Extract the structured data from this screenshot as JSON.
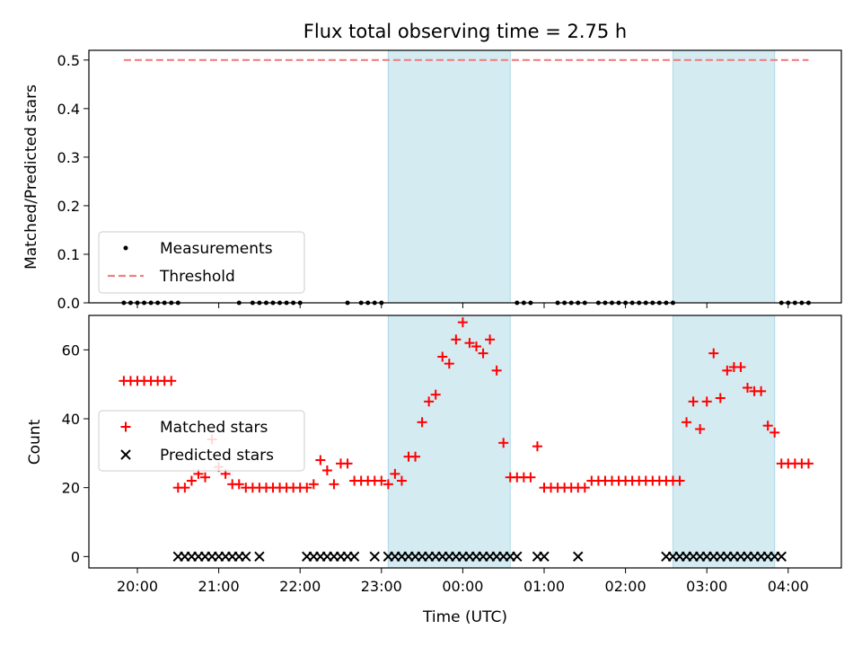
{
  "title": "Flux total observing time = 2.75 h",
  "colors": {
    "matched": "#ff0000",
    "predicted": "#000000",
    "threshold": "#f08080",
    "band": "#add8e6"
  },
  "chart_data": [
    {
      "type": "scatter",
      "ylabel": "Matched/Predicted stars",
      "ylim": [
        0,
        0.52
      ],
      "yticks": [
        0.0,
        0.1,
        0.2,
        0.3,
        0.4,
        0.5
      ],
      "ytick_labels": [
        "0.0",
        "0.1",
        "0.2",
        "0.3",
        "0.4",
        "0.5"
      ],
      "legend": {
        "placement": "lower-left",
        "entries": [
          "Measurements",
          "Threshold"
        ]
      },
      "threshold": {
        "value": 0.5,
        "x_start": "19:50",
        "x_end": "04:15"
      },
      "measurements_x": [
        "19:50",
        "19:55",
        "20:00",
        "20:05",
        "20:10",
        "20:15",
        "20:20",
        "20:25",
        "20:30",
        "21:15",
        "21:25",
        "21:30",
        "21:35",
        "21:40",
        "21:45",
        "21:50",
        "21:55",
        "22:00",
        "22:35",
        "22:45",
        "22:50",
        "22:55",
        "23:00",
        "00:40",
        "00:45",
        "00:50",
        "01:10",
        "01:15",
        "01:20",
        "01:25",
        "01:30",
        "01:40",
        "01:45",
        "01:50",
        "01:55",
        "02:00",
        "02:05",
        "02:10",
        "02:15",
        "02:20",
        "02:25",
        "02:30",
        "02:35",
        "03:55",
        "04:00",
        "04:05",
        "04:10",
        "04:15"
      ],
      "measurements_y": 0
    },
    {
      "type": "scatter",
      "xlabel": "Time (UTC)",
      "ylabel": "Count",
      "ylim": [
        -3.3,
        70
      ],
      "yticks": [
        0,
        20,
        40,
        60
      ],
      "ytick_labels": [
        "0",
        "20",
        "40",
        "60"
      ],
      "xticks": [
        "20:00",
        "21:00",
        "22:00",
        "23:00",
        "00:00",
        "01:00",
        "02:00",
        "03:00",
        "04:00"
      ],
      "legend": {
        "placement": "center-left",
        "entries": [
          "Matched stars",
          "Predicted stars"
        ]
      },
      "series": [
        {
          "name": "Matched stars",
          "marker": "plus",
          "x": [
            "19:50",
            "19:55",
            "20:00",
            "20:05",
            "20:10",
            "20:15",
            "20:20",
            "20:25",
            "20:30",
            "20:35",
            "20:40",
            "20:45",
            "20:50",
            "20:55",
            "21:00",
            "21:05",
            "21:10",
            "21:15",
            "21:20",
            "21:25",
            "21:30",
            "21:35",
            "21:40",
            "21:45",
            "21:50",
            "21:55",
            "22:00",
            "22:05",
            "22:10",
            "22:15",
            "22:20",
            "22:25",
            "22:30",
            "22:35",
            "22:40",
            "22:45",
            "22:50",
            "22:55",
            "23:00",
            "23:05",
            "23:10",
            "23:15",
            "23:20",
            "23:25",
            "23:30",
            "23:35",
            "23:40",
            "23:45",
            "23:50",
            "23:55",
            "00:00",
            "00:05",
            "00:10",
            "00:15",
            "00:20",
            "00:25",
            "00:30",
            "00:35",
            "00:40",
            "00:45",
            "00:50",
            "00:55",
            "01:00",
            "01:05",
            "01:10",
            "01:15",
            "01:20",
            "01:25",
            "01:30",
            "01:35",
            "01:40",
            "01:45",
            "01:50",
            "01:55",
            "02:00",
            "02:05",
            "02:10",
            "02:15",
            "02:20",
            "02:25",
            "02:30",
            "02:35",
            "02:40",
            "02:45",
            "02:50",
            "02:55",
            "03:00",
            "03:05",
            "03:10",
            "03:15",
            "03:20",
            "03:25",
            "03:30",
            "03:35",
            "03:40",
            "03:45",
            "03:50",
            "03:55",
            "04:00",
            "04:05",
            "04:10",
            "04:15"
          ],
          "values": [
            51,
            51,
            51,
            51,
            51,
            51,
            51,
            51,
            20,
            20,
            22,
            24,
            23,
            34,
            26,
            24,
            21,
            21,
            20,
            20,
            20,
            20,
            20,
            20,
            20,
            20,
            20,
            20,
            21,
            28,
            25,
            21,
            27,
            27,
            22,
            22,
            22,
            22,
            22,
            21,
            24,
            22,
            29,
            29,
            39,
            45,
            47,
            58,
            56,
            63,
            68,
            62,
            61,
            59,
            63,
            54,
            33,
            23,
            23,
            23,
            23,
            32,
            20,
            20,
            20,
            20,
            20,
            20,
            20,
            22,
            22,
            22,
            22,
            22,
            22,
            22,
            22,
            22,
            22,
            22,
            22,
            22,
            22,
            39,
            45,
            37,
            45,
            59,
            46,
            54,
            55,
            55,
            49,
            48,
            48,
            38,
            36,
            27,
            27,
            27,
            27,
            27
          ]
        },
        {
          "name": "Predicted stars",
          "marker": "x",
          "x": [
            "20:30",
            "20:35",
            "20:40",
            "20:45",
            "20:50",
            "20:55",
            "21:00",
            "21:05",
            "21:10",
            "21:15",
            "21:20",
            "21:30",
            "22:05",
            "22:10",
            "22:15",
            "22:20",
            "22:25",
            "22:30",
            "22:35",
            "22:40",
            "22:55",
            "23:05",
            "23:10",
            "23:15",
            "23:20",
            "23:25",
            "23:30",
            "23:35",
            "23:40",
            "23:45",
            "23:50",
            "23:55",
            "00:00",
            "00:05",
            "00:10",
            "00:15",
            "00:20",
            "00:25",
            "00:30",
            "00:35",
            "00:40",
            "00:55",
            "01:00",
            "01:25",
            "02:30",
            "02:35",
            "02:40",
            "02:45",
            "02:50",
            "02:55",
            "03:00",
            "03:05",
            "03:10",
            "03:15",
            "03:20",
            "03:25",
            "03:30",
            "03:35",
            "03:40",
            "03:45",
            "03:50",
            "03:55"
          ],
          "value": 0
        }
      ],
      "bands": [
        {
          "x_start": "23:05",
          "x_end": "00:35"
        },
        {
          "x_start": "02:35",
          "x_end": "03:50"
        }
      ]
    }
  ]
}
